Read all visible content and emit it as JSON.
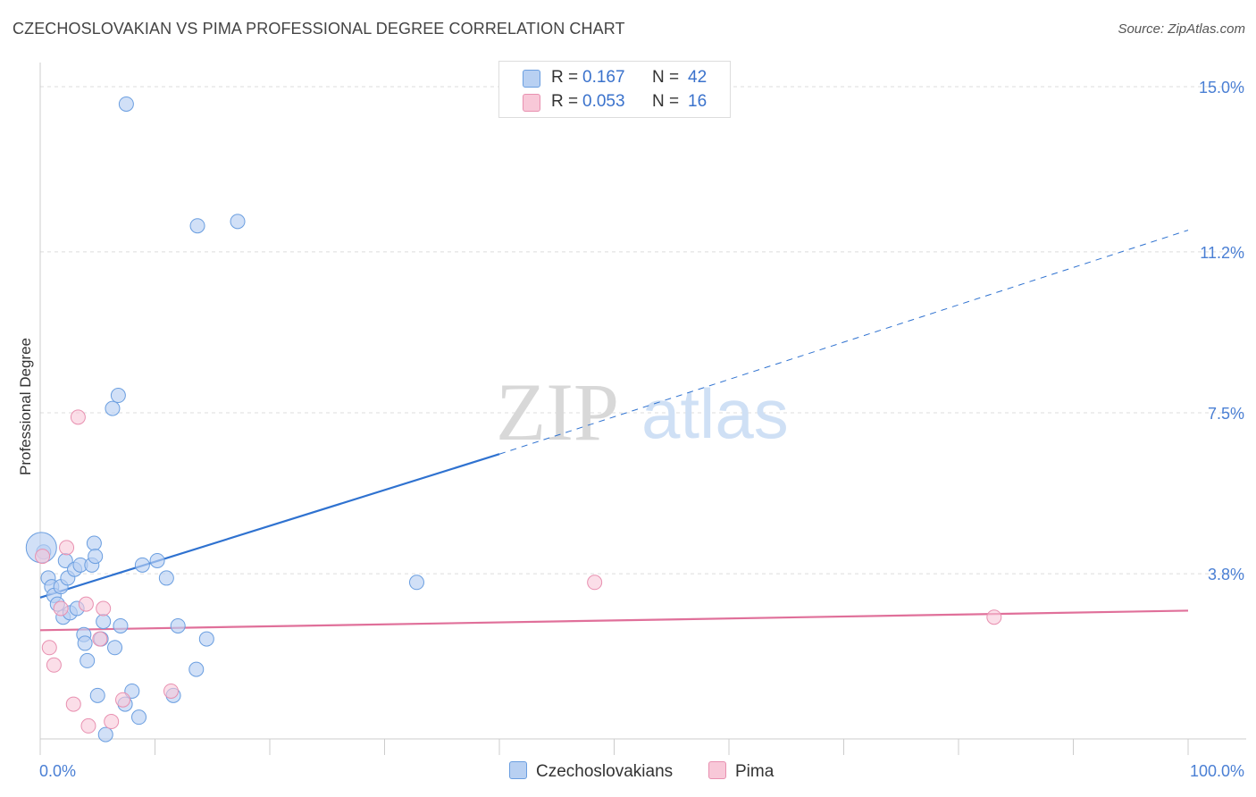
{
  "title": "CZECHOSLOVAKIAN VS PIMA PROFESSIONAL DEGREE CORRELATION CHART",
  "source": "Source: ZipAtlas.com",
  "watermark": {
    "zip": "ZIP",
    "atlas": "atlas"
  },
  "legend": {
    "rows": [
      {
        "r_label": "R =",
        "r_value": "0.167",
        "n_label": "N =",
        "n_value": "42"
      },
      {
        "r_label": "R =",
        "r_value": "0.053",
        "n_label": "N =",
        "n_value": "16"
      }
    ]
  },
  "bottom_legend": {
    "series1": "Czechoslovakians",
    "series2": "Pima"
  },
  "colors": {
    "blue_fill": "#b8d0f2",
    "blue_stroke": "#6a9ee0",
    "blue_line": "#2f72d0",
    "pink_fill": "#f8c8d8",
    "pink_stroke": "#e890b0",
    "pink_line": "#e0709a",
    "grid": "#dddddd",
    "tick": "#4a7fd4"
  },
  "chart_data": {
    "type": "scatter",
    "title": "CZECHOSLOVAKIAN VS PIMA PROFESSIONAL DEGREE CORRELATION CHART",
    "xlabel": "",
    "ylabel": "Professional Degree",
    "xlim": [
      0,
      100
    ],
    "ylim": [
      0,
      15.5
    ],
    "x_tick_labels": [
      "0.0%",
      "100.0%"
    ],
    "y_ticks": [
      3.8,
      7.5,
      11.2,
      15.0
    ],
    "y_tick_labels": [
      "3.8%",
      "7.5%",
      "11.2%",
      "15.0%"
    ],
    "series": [
      {
        "name": "Czechoslovakians",
        "r": 0.167,
        "n": 42,
        "points": [
          [
            7.5,
            14.6
          ],
          [
            13.7,
            11.8
          ],
          [
            17.2,
            11.9
          ],
          [
            6.8,
            7.9
          ],
          [
            6.3,
            7.6
          ],
          [
            0.3,
            4.3
          ],
          [
            0.7,
            3.7
          ],
          [
            1.0,
            3.5
          ],
          [
            1.2,
            3.3
          ],
          [
            1.5,
            3.1
          ],
          [
            1.8,
            3.5
          ],
          [
            2.0,
            2.8
          ],
          [
            2.2,
            4.1
          ],
          [
            2.4,
            3.7
          ],
          [
            2.6,
            2.9
          ],
          [
            3.0,
            3.9
          ],
          [
            3.2,
            3.0
          ],
          [
            3.5,
            4.0
          ],
          [
            3.8,
            2.4
          ],
          [
            3.9,
            2.2
          ],
          [
            4.1,
            1.8
          ],
          [
            4.5,
            4.0
          ],
          [
            4.7,
            4.5
          ],
          [
            4.8,
            4.2
          ],
          [
            5.3,
            2.3
          ],
          [
            5.5,
            2.7
          ],
          [
            5.7,
            0.1
          ],
          [
            6.5,
            2.1
          ],
          [
            7.0,
            2.6
          ],
          [
            7.4,
            0.8
          ],
          [
            8.0,
            1.1
          ],
          [
            8.6,
            0.5
          ],
          [
            8.9,
            4.0
          ],
          [
            10.2,
            4.1
          ],
          [
            11.0,
            3.7
          ],
          [
            11.6,
            1.0
          ],
          [
            12.0,
            2.6
          ],
          [
            14.5,
            2.3
          ],
          [
            13.6,
            1.6
          ],
          [
            32.8,
            3.6
          ],
          [
            5.0,
            1.0
          ],
          [
            0.1,
            4.4
          ]
        ]
      },
      {
        "name": "Pima",
        "r": 0.053,
        "n": 16,
        "points": [
          [
            3.3,
            7.4
          ],
          [
            0.2,
            4.2
          ],
          [
            2.3,
            4.4
          ],
          [
            1.8,
            3.0
          ],
          [
            4.0,
            3.1
          ],
          [
            5.5,
            3.0
          ],
          [
            5.2,
            2.3
          ],
          [
            0.8,
            2.1
          ],
          [
            1.2,
            1.7
          ],
          [
            2.9,
            0.8
          ],
          [
            4.2,
            0.3
          ],
          [
            6.2,
            0.4
          ],
          [
            7.2,
            0.9
          ],
          [
            11.4,
            1.1
          ],
          [
            48.3,
            3.6
          ],
          [
            83.1,
            2.8
          ]
        ]
      }
    ],
    "trend_lines": [
      {
        "series": "Czechoslovakians",
        "x": [
          0,
          40,
          100
        ],
        "y": [
          3.25,
          6.55,
          11.7
        ],
        "dashed_from_x": 40
      },
      {
        "series": "Pima",
        "x": [
          0,
          100
        ],
        "y": [
          2.5,
          2.95
        ]
      }
    ]
  }
}
